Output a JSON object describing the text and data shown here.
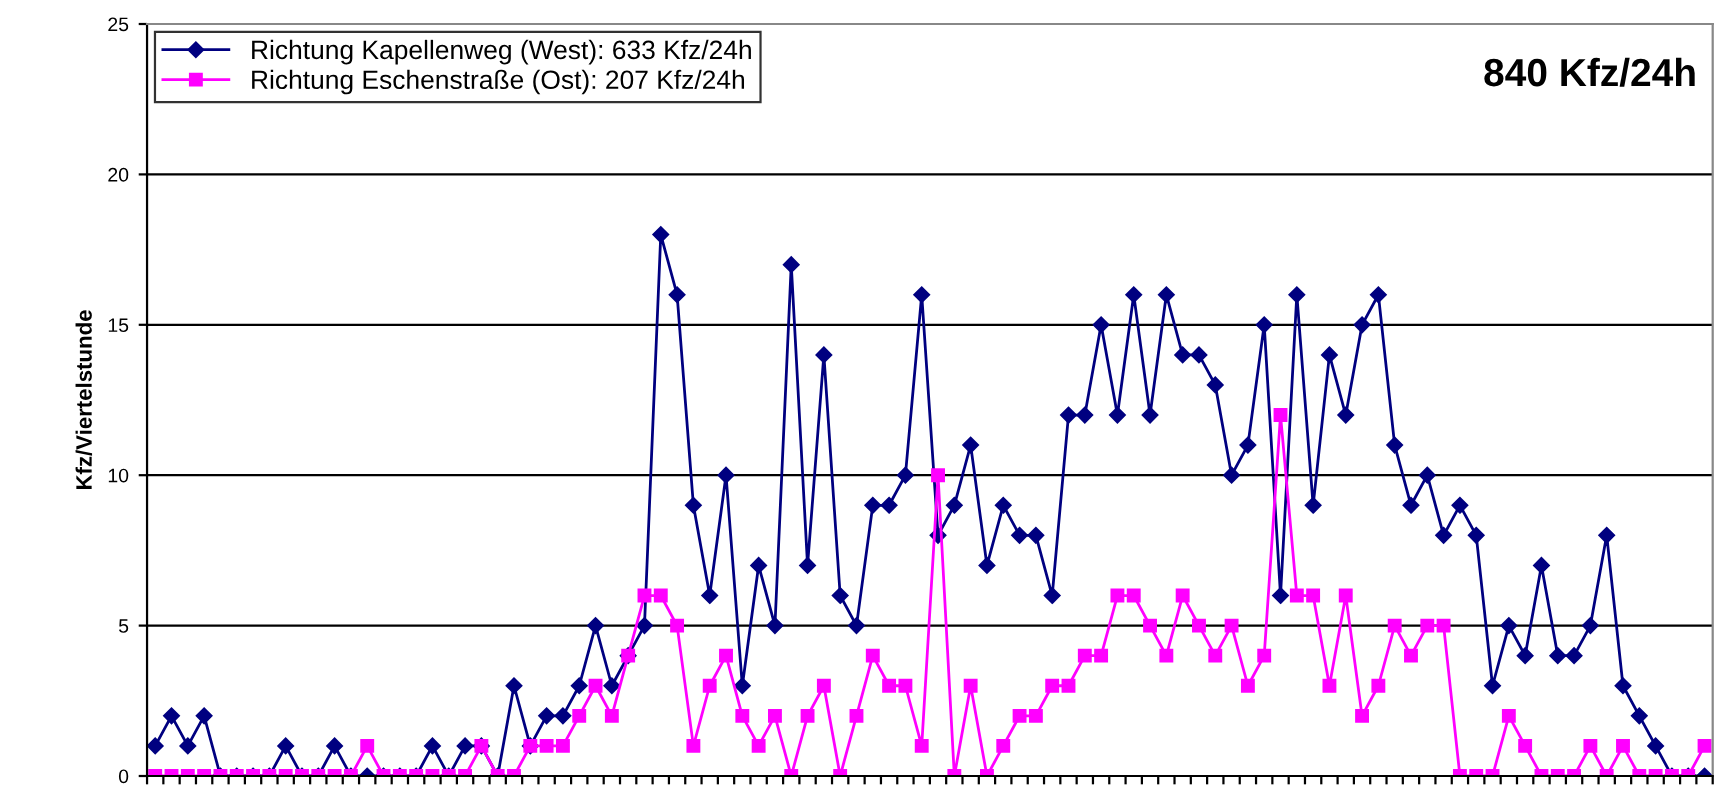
{
  "chart_data": {
    "type": "line",
    "categories": [
      null,
      null,
      null,
      null,
      null,
      null,
      null,
      null,
      null,
      null,
      null,
      null,
      null,
      null,
      null,
      null,
      null,
      null,
      null,
      null,
      null,
      null,
      null,
      null,
      null,
      null,
      null,
      null,
      null,
      null,
      null,
      null,
      null,
      null,
      null,
      null,
      null,
      null,
      null,
      null,
      null,
      null,
      null,
      null,
      null,
      null,
      null,
      null,
      null,
      null,
      null,
      null,
      null,
      null,
      null,
      null,
      null,
      null,
      null,
      null,
      null,
      null,
      null,
      null,
      null,
      null,
      null,
      null,
      null,
      null,
      null,
      null,
      null,
      null,
      null,
      null,
      null,
      null,
      null,
      null,
      null,
      null,
      null,
      null,
      null,
      null,
      null,
      null,
      null,
      null,
      null,
      null,
      null,
      null,
      null,
      null
    ],
    "ylabel": "Kfz/Viertelstunde",
    "annotations": [
      "840 Kfz/24h"
    ],
    "series": [
      {
        "name": "Richtung Kapellenweg (West): 633 Kfz/24h",
        "color": "#000080",
        "marker": "diamond",
        "values": [
          1,
          2,
          1,
          2,
          0,
          0,
          0,
          0,
          1,
          0,
          0,
          1,
          0,
          0,
          0,
          0,
          0,
          1,
          0,
          1,
          1,
          0,
          3,
          1,
          2,
          2,
          3,
          5,
          3,
          4,
          5,
          18,
          16,
          9,
          6,
          10,
          3,
          7,
          5,
          17,
          7,
          14,
          6,
          5,
          9,
          9,
          10,
          16,
          8,
          9,
          11,
          7,
          9,
          8,
          8,
          6,
          12,
          12,
          15,
          12,
          16,
          12,
          16,
          14,
          14,
          13,
          10,
          11,
          15,
          6,
          16,
          9,
          14,
          12,
          15,
          16,
          11,
          9,
          10,
          8,
          9,
          8,
          3,
          5,
          4,
          7,
          4,
          4,
          5,
          8,
          3,
          2,
          1,
          0,
          0,
          0
        ]
      },
      {
        "name": "Richtung Eschenstraße (Ost): 207 Kfz/24h",
        "color": "#ff00ff",
        "marker": "square",
        "values": [
          0,
          0,
          0,
          0,
          0,
          0,
          0,
          0,
          0,
          0,
          0,
          0,
          0,
          1,
          0,
          0,
          0,
          0,
          0,
          0,
          1,
          0,
          0,
          1,
          1,
          1,
          2,
          3,
          2,
          4,
          6,
          6,
          5,
          1,
          3,
          4,
          2,
          1,
          2,
          0,
          2,
          3,
          0,
          2,
          4,
          3,
          3,
          1,
          10,
          0,
          3,
          0,
          1,
          2,
          2,
          3,
          3,
          4,
          4,
          6,
          6,
          5,
          4,
          6,
          5,
          4,
          5,
          3,
          4,
          12,
          6,
          6,
          3,
          6,
          2,
          3,
          5,
          4,
          5,
          5,
          0,
          0,
          0,
          2,
          1,
          0,
          0,
          0,
          1,
          0,
          1,
          0,
          0,
          0,
          0,
          1
        ]
      }
    ],
    "ylim": [
      0,
      25
    ],
    "yticks": [
      0,
      5,
      10,
      15,
      20,
      25
    ],
    "grid": "y",
    "legend": "top left",
    "tick_labels": "y",
    "line_style": "solid"
  }
}
